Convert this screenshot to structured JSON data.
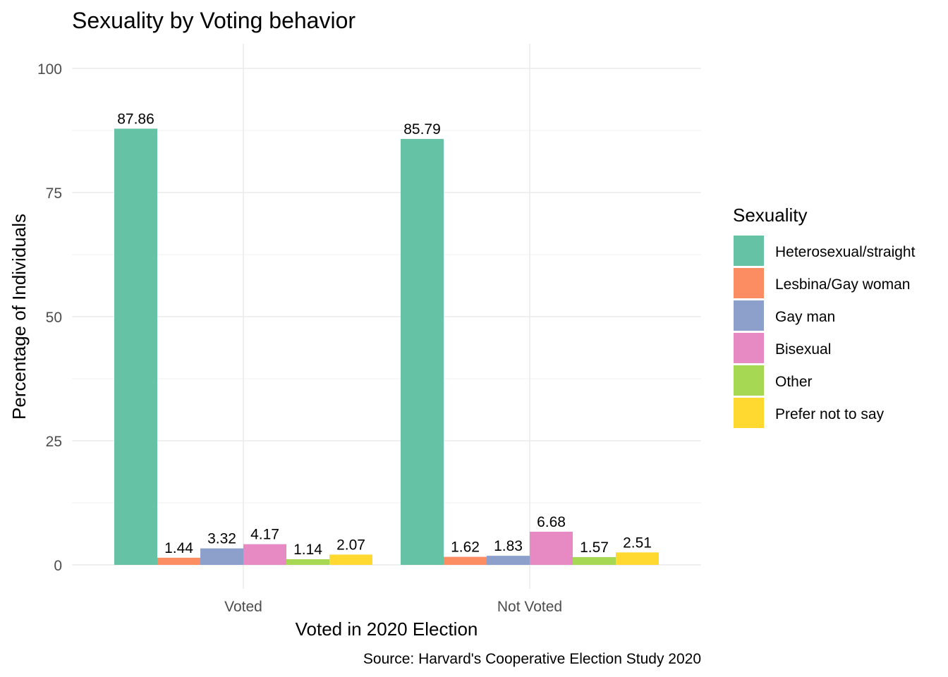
{
  "chart_data": {
    "type": "bar",
    "title": "Sexuality by Voting behavior",
    "xlabel": "Voted in 2020 Election",
    "ylabel": "Percentage of Individuals",
    "caption": "Source: Harvard's Cooperative Election Study 2020",
    "categories": [
      "Voted",
      "Not Voted"
    ],
    "ylim": [
      0,
      100
    ],
    "yticks": [
      0,
      25,
      50,
      75,
      100
    ],
    "grid": true,
    "legend": {
      "title": "Sexuality",
      "position": "right"
    },
    "series": [
      {
        "name": "Heterosexual/straight",
        "color": "#66c2a5",
        "values": [
          87.86,
          85.79
        ],
        "labels": [
          "87.86",
          "85.79"
        ]
      },
      {
        "name": "Lesbina/Gay woman",
        "color": "#fc8d62",
        "values": [
          1.44,
          1.62
        ],
        "labels": [
          "1.44",
          "1.62"
        ]
      },
      {
        "name": "Gay man",
        "color": "#8da0cb",
        "values": [
          3.32,
          1.83
        ],
        "labels": [
          "3.32",
          "1.83"
        ]
      },
      {
        "name": "Bisexual",
        "color": "#e78ac3",
        "values": [
          4.17,
          6.68
        ],
        "labels": [
          "4.17",
          "6.68"
        ]
      },
      {
        "name": "Other",
        "color": "#a6d854",
        "values": [
          1.14,
          1.57
        ],
        "labels": [
          "1.14",
          "1.57"
        ]
      },
      {
        "name": "Prefer not to say",
        "color": "#ffd92f",
        "values": [
          2.07,
          2.51
        ],
        "labels": [
          "2.07",
          "2.51"
        ]
      }
    ]
  }
}
